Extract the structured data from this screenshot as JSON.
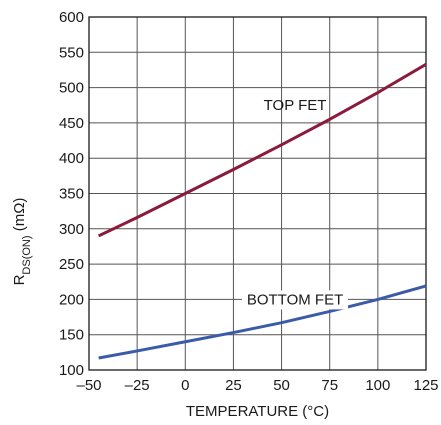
{
  "chart_data": {
    "type": "line",
    "title": "",
    "xlabel": "TEMPERATURE (°C)",
    "ylabel_main": "R",
    "ylabel_sub": "DS(ON)",
    "ylabel_unit": " (mΩ)",
    "xlim": [
      -50,
      125
    ],
    "ylim": [
      100,
      600
    ],
    "xticks": [
      -50,
      -25,
      0,
      25,
      50,
      75,
      100,
      125
    ],
    "yticks": [
      100,
      150,
      200,
      250,
      300,
      350,
      400,
      450,
      500,
      550,
      600
    ],
    "xtick_labels": [
      "–50",
      "–25",
      "0",
      "25",
      "50",
      "75",
      "100",
      "125"
    ],
    "ytick_labels": [
      "100",
      "150",
      "200",
      "250",
      "300",
      "350",
      "400",
      "450",
      "500",
      "550",
      "600"
    ],
    "grid": true,
    "series": [
      {
        "name": "TOP FET",
        "color": "#8b1a3c",
        "x": [
          -45,
          -25,
          0,
          25,
          50,
          75,
          100,
          125
        ],
        "y": [
          290,
          316,
          350,
          384,
          419,
          455,
          493,
          533
        ]
      },
      {
        "name": "BOTTOM FET",
        "color": "#3b5aa8",
        "x": [
          -45,
          -25,
          0,
          25,
          50,
          75,
          100,
          125
        ],
        "y": [
          117,
          127,
          140,
          153,
          167,
          183,
          200,
          219
        ]
      }
    ]
  }
}
